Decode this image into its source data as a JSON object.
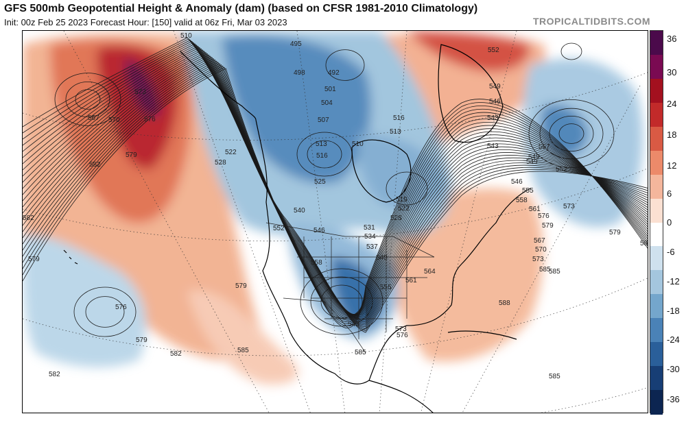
{
  "header": {
    "title": "GFS 500mb Geopotential Height & Anomaly (dam) (based on CFSR 1981-2010 Climatology)",
    "subtitle": "Init: 00z Feb 25 2023   Forecast Hour: [150]   valid at 06z Fri, Mar 03 2023",
    "brand": "TROPICALTIDBITS.COM"
  },
  "colorbar": {
    "labels": [
      "36",
      "30",
      "24",
      "18",
      "12",
      "6",
      "0",
      "-6",
      "-12",
      "-18",
      "-24",
      "-30",
      "-36"
    ],
    "colors": [
      "#4b0a4b",
      "#7a0a52",
      "#a3101f",
      "#c22a2a",
      "#d95a44",
      "#ec8a6a",
      "#f4b69c",
      "#fbe0d2",
      "#ffffff",
      "#cfe1ee",
      "#a4c6de",
      "#74a6cc",
      "#4a82b7",
      "#2a5f9a",
      "#173e75",
      "#0c2551"
    ]
  },
  "contour_labels": [
    "510",
    "495",
    "498",
    "492",
    "501",
    "504",
    "507",
    "513",
    "510",
    "516",
    "519",
    "522",
    "525",
    "528",
    "531",
    "534",
    "537",
    "540",
    "543",
    "546",
    "549",
    "552",
    "555",
    "558",
    "561",
    "564",
    "567",
    "570",
    "573",
    "576",
    "579",
    "582",
    "585",
    "588"
  ],
  "map_labels": [
    {
      "text": "510"
    },
    {
      "text": "495"
    },
    {
      "text": "498"
    },
    {
      "text": "492"
    },
    {
      "text": "501"
    },
    {
      "text": "504"
    },
    {
      "text": "507"
    },
    {
      "text": "513"
    },
    {
      "text": "510"
    },
    {
      "text": "516"
    },
    {
      "text": "516"
    },
    {
      "text": "513"
    },
    {
      "text": "522"
    },
    {
      "text": "528"
    },
    {
      "text": "525"
    },
    {
      "text": "519"
    },
    {
      "text": "522"
    },
    {
      "text": "528"
    },
    {
      "text": "531"
    },
    {
      "text": "534"
    },
    {
      "text": "537"
    },
    {
      "text": "540"
    },
    {
      "text": "546"
    },
    {
      "text": "552"
    },
    {
      "text": "540"
    },
    {
      "text": "558"
    },
    {
      "text": "555"
    },
    {
      "text": "561"
    },
    {
      "text": "564"
    },
    {
      "text": "543"
    },
    {
      "text": "549"
    },
    {
      "text": "567"
    },
    {
      "text": "573"
    },
    {
      "text": "576"
    },
    {
      "text": "579"
    },
    {
      "text": "582"
    },
    {
      "text": "585"
    },
    {
      "text": "585"
    },
    {
      "text": "573"
    },
    {
      "text": "576"
    },
    {
      "text": "567"
    },
    {
      "text": "570"
    },
    {
      "text": "573"
    },
    {
      "text": "576"
    },
    {
      "text": "579"
    },
    {
      "text": "582"
    },
    {
      "text": "582"
    },
    {
      "text": "579"
    },
    {
      "text": "579"
    },
    {
      "text": "576"
    },
    {
      "text": "579"
    },
    {
      "text": "582"
    },
    {
      "text": "582"
    },
    {
      "text": "585"
    },
    {
      "text": "552"
    },
    {
      "text": "549"
    },
    {
      "text": "546"
    },
    {
      "text": "543"
    },
    {
      "text": "543"
    },
    {
      "text": "549"
    },
    {
      "text": "552"
    },
    {
      "text": "546"
    },
    {
      "text": "555"
    },
    {
      "text": "558"
    },
    {
      "text": "561"
    },
    {
      "text": "567"
    },
    {
      "text": "570"
    },
    {
      "text": "573"
    },
    {
      "text": "579"
    },
    {
      "text": "582"
    },
    {
      "text": "585"
    },
    {
      "text": "588"
    },
    {
      "text": "585"
    }
  ]
}
